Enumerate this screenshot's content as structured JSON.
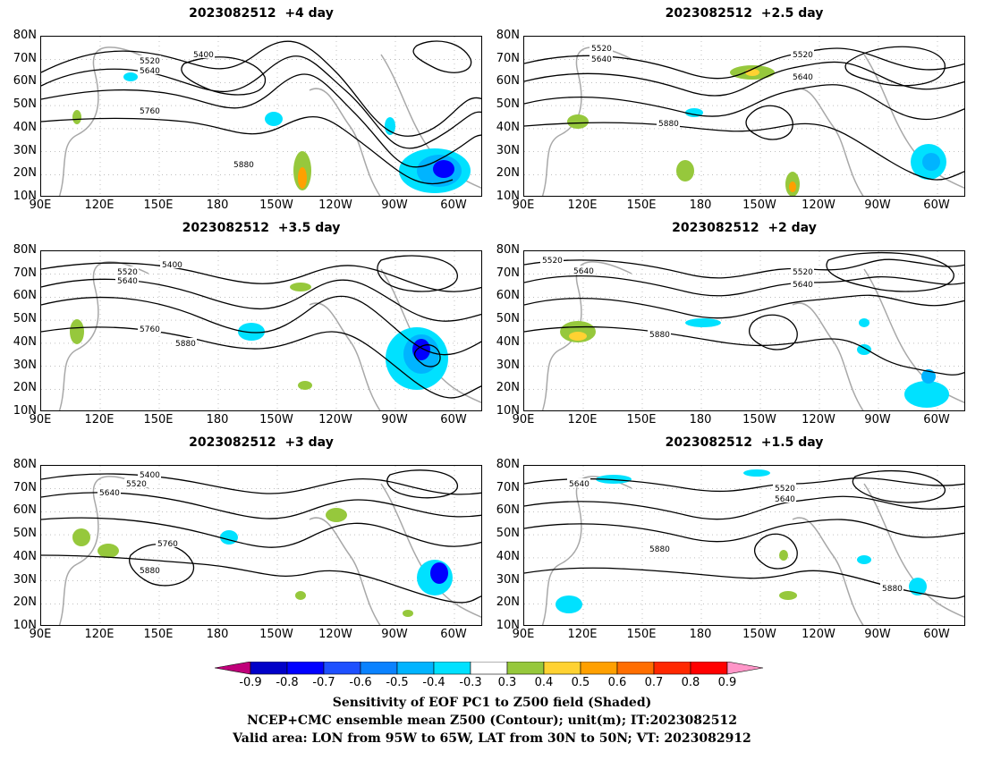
{
  "panels": [
    {
      "title": "2023082512  +4 day"
    },
    {
      "title": "2023082512  +2.5 day"
    },
    {
      "title": "2023082512  +3.5 day"
    },
    {
      "title": "2023082512  +2 day"
    },
    {
      "title": "2023082512  +3 day"
    },
    {
      "title": "2023082512  +1.5 day"
    }
  ],
  "lat_labels": [
    "80N",
    "70N",
    "60N",
    "50N",
    "40N",
    "30N",
    "20N",
    "10N"
  ],
  "lon_labels": [
    "90E",
    "120E",
    "150E",
    "180",
    "150W",
    "120W",
    "90W",
    "60W"
  ],
  "contour_labels": [
    "5400",
    "5520",
    "5640",
    "5760",
    "5880"
  ],
  "colorbar": {
    "labels": [
      "-0.9",
      "-0.8",
      "-0.7",
      "-0.6",
      "-0.5",
      "-0.4",
      "-0.3",
      "0.3",
      "0.4",
      "0.5",
      "0.6",
      "0.7",
      "0.8",
      "0.9"
    ],
    "colors": [
      "#c0007a",
      "#0000c8",
      "#0000ff",
      "#1e50ff",
      "#0a82ff",
      "#00b4ff",
      "#00e1ff",
      "#ffffff",
      "#96c83c",
      "#ffd232",
      "#ffa000",
      "#ff6e00",
      "#ff2800",
      "#ff0000",
      "#ff96c8"
    ]
  },
  "caption": {
    "line1": "Sensitivity of EOF PC1 to Z500 field (Shaded)",
    "line2": "NCEP+CMC ensemble mean Z500 (Contour); unit(m); IT:2023082512",
    "line3": "Valid area: LON from 95W to 65W, LAT from 30N to 50N; VT: 2023082912"
  }
}
